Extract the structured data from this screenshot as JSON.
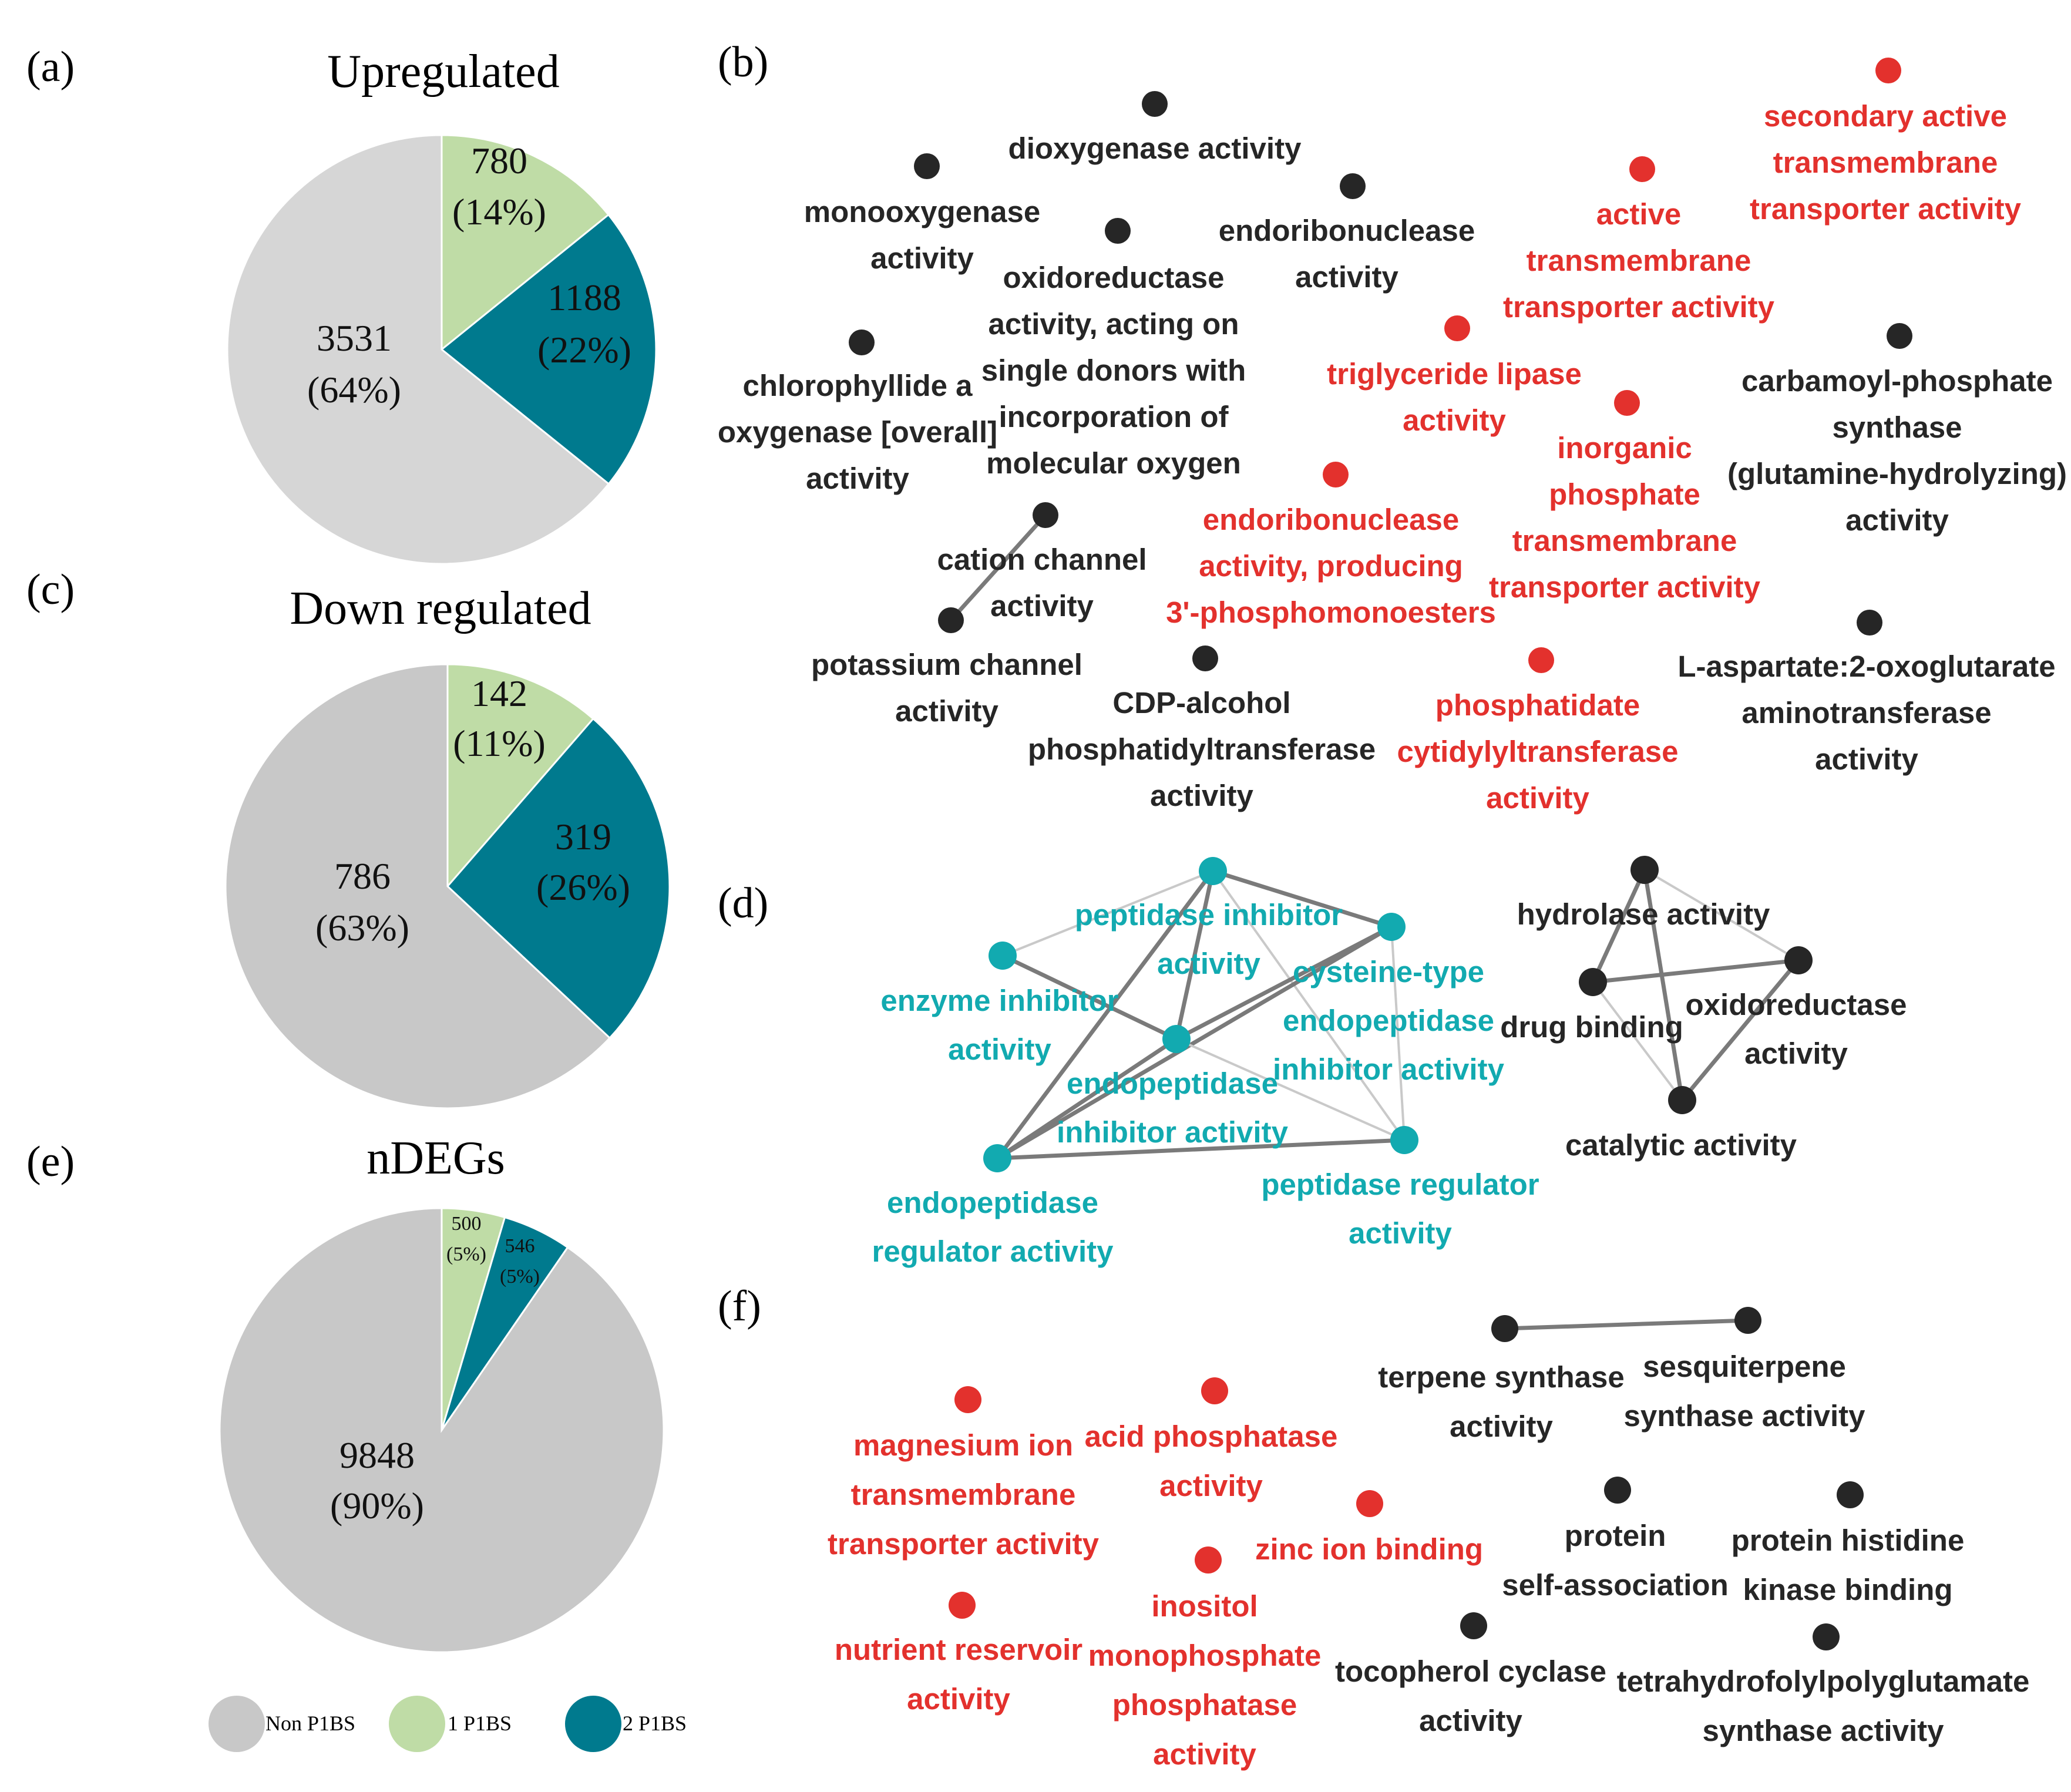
{
  "colors": {
    "non_p1bs": "#c8c8c8",
    "non_p1bs_a": "#d6d6d6",
    "one_p1bs": "#bfdca6",
    "two_p1bs": "#007a8e",
    "upregulated_term": "#e3312d",
    "downregulated_term": "#12aab0",
    "neutral_term": "#262626"
  },
  "panel_labels": [
    "(a)",
    "(b)",
    "(c)",
    "(d)",
    "(e)",
    "(f)"
  ],
  "chart_data": [
    {
      "type": "pie",
      "panel": "(a)",
      "title": "Upregulated",
      "slices": [
        {
          "name": "1 P1BS",
          "value": 780,
          "percent": "(14%)",
          "count_label": "780"
        },
        {
          "name": "2 P1BS",
          "value": 1188,
          "percent": "(22%)",
          "count_label": "1188"
        },
        {
          "name": "Non P1BS",
          "value": 3531,
          "percent": "(64%)",
          "count_label": "3531"
        }
      ]
    },
    {
      "type": "pie",
      "panel": "(c)",
      "title": "Down regulated",
      "slices": [
        {
          "name": "1 P1BS",
          "value": 142,
          "percent": "(11%)",
          "count_label": "142"
        },
        {
          "name": "2 P1BS",
          "value": 319,
          "percent": "(26%)",
          "count_label": "319"
        },
        {
          "name": "Non P1BS",
          "value": 786,
          "percent": "(63%)",
          "count_label": "786"
        }
      ]
    },
    {
      "type": "pie",
      "panel": "(e)",
      "title": "nDEGs",
      "slices": [
        {
          "name": "1 P1BS",
          "value": 500,
          "percent": "(5%)",
          "count_label": "500"
        },
        {
          "name": "2 P1BS",
          "value": 546,
          "percent": "(5%)",
          "count_label": "546"
        },
        {
          "name": "Non P1BS",
          "value": 9848,
          "percent": "(90%)",
          "count_label": "9848"
        }
      ]
    }
  ],
  "legend": [
    {
      "name": "Non P1BS",
      "color_key": "non_p1bs"
    },
    {
      "name": "1 P1BS",
      "color_key": "one_p1bs"
    },
    {
      "name": "2 P1BS",
      "color_key": "two_p1bs"
    }
  ],
  "networks": {
    "b": {
      "nodes": [
        {
          "id": "dioxygenase",
          "lines": [
            "dioxygenase activity"
          ],
          "class": "neutral"
        },
        {
          "id": "monooxygenase",
          "lines": [
            "monooxygenase",
            "activity"
          ],
          "class": "neutral"
        },
        {
          "id": "oxidoreductase_single",
          "lines": [
            "oxidoreductase",
            "activity, acting on",
            "single donors with",
            "incorporation of",
            "molecular oxygen"
          ],
          "class": "neutral"
        },
        {
          "id": "endoribonuclease",
          "lines": [
            "endoribonuclease",
            "activity"
          ],
          "class": "neutral"
        },
        {
          "id": "chlorophyllide",
          "lines": [
            "chlorophyllide a",
            "oxygenase [overall]",
            "activity"
          ],
          "class": "neutral"
        },
        {
          "id": "cation_channel",
          "lines": [
            "cation channel",
            "activity"
          ],
          "class": "neutral"
        },
        {
          "id": "potassium_channel",
          "lines": [
            "potassium channel",
            "activity"
          ],
          "class": "neutral"
        },
        {
          "id": "cdp_alcohol",
          "lines": [
            "CDP-alcohol",
            "phosphatidyltransferase",
            "activity"
          ],
          "class": "neutral"
        },
        {
          "id": "secondary_active",
          "lines": [
            "secondary active",
            "transmembrane",
            "transporter activity"
          ],
          "class": "up"
        },
        {
          "id": "active_transmembrane",
          "lines": [
            "active",
            "transmembrane",
            "transporter activity"
          ],
          "class": "up"
        },
        {
          "id": "triglyceride_lipase",
          "lines": [
            "triglyceride lipase",
            "activity"
          ],
          "class": "up"
        },
        {
          "id": "inorganic_phosphate",
          "lines": [
            "inorganic",
            "phosphate",
            "transmembrane",
            "transporter activity"
          ],
          "class": "up"
        },
        {
          "id": "endoribonuclease_3p",
          "lines": [
            "endoribonuclease",
            "activity, producing",
            "3'-phosphomonoesters"
          ],
          "class": "up"
        },
        {
          "id": "phosphatidate",
          "lines": [
            "phosphatidate",
            "cytidylyltransferase",
            "activity"
          ],
          "class": "up"
        },
        {
          "id": "carbamoyl",
          "lines": [
            "carbamoyl-phosphate",
            "synthase",
            "(glutamine-hydrolyzing)",
            "activity"
          ],
          "class": "neutral"
        },
        {
          "id": "l_aspartate",
          "lines": [
            "L-aspartate:2-oxoglutarate",
            "aminotransferase",
            "activity"
          ],
          "class": "neutral"
        }
      ],
      "edges": [
        [
          "cation_channel",
          "potassium_channel"
        ]
      ]
    },
    "d": {
      "nodes": [
        {
          "id": "peptidase_inhibitor",
          "lines": [
            "peptidase inhibitor",
            "activity"
          ],
          "class": "down"
        },
        {
          "id": "cysteine_type",
          "lines": [
            "cysteine-type",
            "endopeptidase",
            "inhibitor activity"
          ],
          "class": "down"
        },
        {
          "id": "enzyme_inhibitor",
          "lines": [
            "enzyme inhibitor",
            "activity"
          ],
          "class": "down"
        },
        {
          "id": "endopeptidase_inhibitor",
          "lines": [
            "endopeptidase",
            "inhibitor activity"
          ],
          "class": "down"
        },
        {
          "id": "endopeptidase_regulator",
          "lines": [
            "endopeptidase",
            "regulator activity"
          ],
          "class": "down"
        },
        {
          "id": "peptidase_regulator",
          "lines": [
            "peptidase regulator",
            "activity"
          ],
          "class": "down"
        },
        {
          "id": "hydrolase",
          "lines": [
            "hydrolase activity"
          ],
          "class": "neutral"
        },
        {
          "id": "drug_binding",
          "lines": [
            "drug binding"
          ],
          "class": "neutral"
        },
        {
          "id": "oxidoreductase",
          "lines": [
            "oxidoreductase",
            "activity"
          ],
          "class": "neutral"
        },
        {
          "id": "catalytic",
          "lines": [
            "catalytic activity"
          ],
          "class": "neutral"
        }
      ],
      "edges": [
        [
          "peptidase_inhibitor",
          "cysteine_type"
        ],
        [
          "peptidase_inhibitor",
          "enzyme_inhibitor"
        ],
        [
          "peptidase_inhibitor",
          "endopeptidase_inhibitor"
        ],
        [
          "peptidase_inhibitor",
          "endopeptidase_regulator"
        ],
        [
          "peptidase_inhibitor",
          "peptidase_regulator"
        ],
        [
          "cysteine_type",
          "endopeptidase_inhibitor"
        ],
        [
          "cysteine_type",
          "endopeptidase_regulator"
        ],
        [
          "cysteine_type",
          "peptidase_regulator"
        ],
        [
          "enzyme_inhibitor",
          "endopeptidase_inhibitor"
        ],
        [
          "endopeptidase_inhibitor",
          "endopeptidase_regulator"
        ],
        [
          "endopeptidase_inhibitor",
          "peptidase_regulator"
        ],
        [
          "endopeptidase_regulator",
          "peptidase_regulator"
        ],
        [
          "hydrolase",
          "drug_binding"
        ],
        [
          "hydrolase",
          "oxidoreductase"
        ],
        [
          "hydrolase",
          "catalytic"
        ],
        [
          "drug_binding",
          "oxidoreductase"
        ],
        [
          "drug_binding",
          "catalytic"
        ],
        [
          "oxidoreductase",
          "catalytic"
        ]
      ]
    },
    "f": {
      "nodes": [
        {
          "id": "magnesium",
          "lines": [
            "magnesium ion",
            "transmembrane",
            "transporter activity"
          ],
          "class": "up"
        },
        {
          "id": "acid_phosphatase",
          "lines": [
            "acid phosphatase",
            "activity"
          ],
          "class": "up"
        },
        {
          "id": "zinc",
          "lines": [
            "zinc ion binding"
          ],
          "class": "up"
        },
        {
          "id": "inositol",
          "lines": [
            "inositol",
            "monophosphate",
            "phosphatase",
            "activity"
          ],
          "class": "up"
        },
        {
          "id": "nutrient",
          "lines": [
            "nutrient reservoir",
            "activity"
          ],
          "class": "up"
        },
        {
          "id": "terpene",
          "lines": [
            "terpene synthase",
            "activity"
          ],
          "class": "neutral"
        },
        {
          "id": "sesquiterpene",
          "lines": [
            "sesquiterpene",
            "synthase activity"
          ],
          "class": "neutral"
        },
        {
          "id": "protein_self",
          "lines": [
            "protein",
            "self-association"
          ],
          "class": "neutral"
        },
        {
          "id": "histidine_kinase",
          "lines": [
            "protein histidine",
            "kinase binding"
          ],
          "class": "neutral"
        },
        {
          "id": "tocopherol",
          "lines": [
            "tocopherol cyclase",
            "activity"
          ],
          "class": "neutral"
        },
        {
          "id": "thf_glutamate",
          "lines": [
            "tetrahydrofolylpolyglutamate",
            "synthase activity"
          ],
          "class": "neutral"
        }
      ],
      "edges": [
        [
          "terpene",
          "sesquiterpene"
        ]
      ]
    }
  }
}
